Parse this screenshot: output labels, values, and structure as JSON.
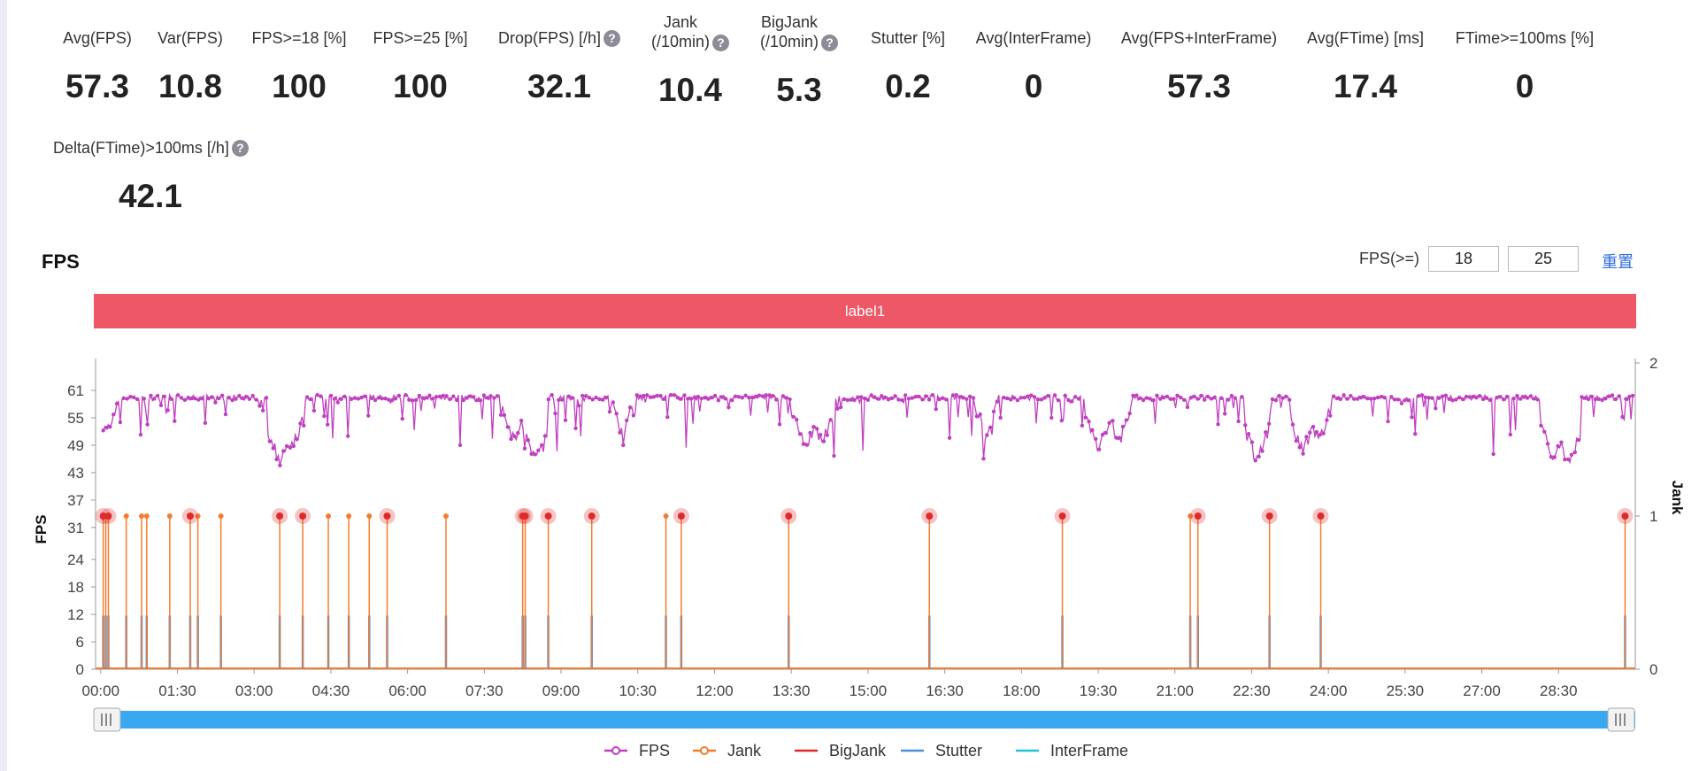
{
  "metrics": [
    {
      "label": "Avg(FPS)",
      "value": "57.3"
    },
    {
      "label": "Var(FPS)",
      "value": "10.8"
    },
    {
      "label": "FPS>=18 [%]",
      "value": "100"
    },
    {
      "label": "FPS>=25 [%]",
      "value": "100"
    },
    {
      "label": "Drop(FPS) [/h]",
      "value": "32.1",
      "help": true
    },
    {
      "label_top": "Jank",
      "label_bottom": "(/10min)",
      "value": "10.4",
      "help": true
    },
    {
      "label_top": "BigJank",
      "label_bottom": "(/10min)",
      "value": "5.3",
      "help": true
    },
    {
      "label": "Stutter [%]",
      "value": "0.2"
    },
    {
      "label": "Avg(InterFrame)",
      "value": "0"
    },
    {
      "label": "Avg(FPS+InterFrame)",
      "value": "57.3"
    },
    {
      "label": "Avg(FTime) [ms]",
      "value": "17.4"
    },
    {
      "label": "FTime>=100ms [%]",
      "value": "0"
    },
    {
      "label": "Delta(FTime)>100ms [/h]",
      "value": "42.1",
      "help": true
    }
  ],
  "help_glyph": "?",
  "section": {
    "title": "FPS"
  },
  "threshold": {
    "label": "FPS(>=)",
    "low": "18",
    "high": "25",
    "reset_label": "重置"
  },
  "label_bar": {
    "text": "label1",
    "color": "#ee5765"
  },
  "chart_data": {
    "type": "line",
    "ylabel_left": "FPS",
    "ylabel_right": "Jank",
    "y_left_ticks": [
      0,
      6,
      12,
      18,
      24,
      31,
      37,
      43,
      49,
      55,
      61
    ],
    "y_left_range": [
      0,
      67
    ],
    "y_right_ticks": [
      0,
      1,
      2
    ],
    "y_right_range": [
      0,
      2
    ],
    "x_tick_labels": [
      "00:00",
      "01:30",
      "03:00",
      "04:30",
      "06:00",
      "07:30",
      "09:00",
      "10:30",
      "12:00",
      "13:30",
      "15:00",
      "16:30",
      "18:00",
      "19:30",
      "21:00",
      "22:30",
      "24:00",
      "25:30",
      "27:00",
      "28:30"
    ],
    "x_range_min": [
      -0.1,
      30.0
    ],
    "grid": false,
    "legend_position": "bottom",
    "series": [
      {
        "name": "FPS",
        "color": "#c040c0",
        "axis": "left"
      },
      {
        "name": "Jank",
        "color": "#f47c30",
        "axis": "right"
      },
      {
        "name": "BigJank",
        "color": "#e02a2a",
        "axis": "right"
      },
      {
        "name": "Stutter",
        "color": "#4a8fe0",
        "axis": "right"
      },
      {
        "name": "InterFrame",
        "color": "#22c5e0",
        "axis": "right"
      }
    ],
    "fps_baseline": 60,
    "fps_dips": [
      {
        "t": 0.1,
        "v": 50
      },
      {
        "t": 3.5,
        "v": 44
      },
      {
        "t": 3.7,
        "v": 46
      },
      {
        "t": 8.5,
        "v": 44
      },
      {
        "t": 8.1,
        "v": 48
      },
      {
        "t": 13.8,
        "v": 47
      },
      {
        "t": 14.1,
        "v": 48
      },
      {
        "t": 19.5,
        "v": 46
      },
      {
        "t": 19.9,
        "v": 48
      },
      {
        "t": 22.6,
        "v": 44
      },
      {
        "t": 23.5,
        "v": 46
      },
      {
        "t": 23.8,
        "v": 48
      },
      {
        "t": 28.4,
        "v": 45
      },
      {
        "t": 28.7,
        "v": 43
      },
      {
        "t": 10.2,
        "v": 50
      },
      {
        "t": 17.3,
        "v": 50
      }
    ],
    "jank_times": [
      0.05,
      0.1,
      0.15,
      0.5,
      0.8,
      0.9,
      1.35,
      1.75,
      1.9,
      2.35,
      3.5,
      3.95,
      4.45,
      4.85,
      5.25,
      5.6,
      6.75,
      8.25,
      8.3,
      8.75,
      9.6,
      11.05,
      11.35,
      13.45,
      16.2,
      18.8,
      21.3,
      21.45,
      22.85,
      23.85,
      29.8
    ],
    "bigjank_times": [
      0.05,
      0.15,
      1.75,
      3.5,
      3.95,
      5.6,
      8.25,
      8.3,
      8.75,
      9.6,
      11.35,
      13.45,
      16.2,
      18.8,
      21.45,
      22.85,
      23.85,
      29.8
    ],
    "stutter_value": 0.35
  }
}
